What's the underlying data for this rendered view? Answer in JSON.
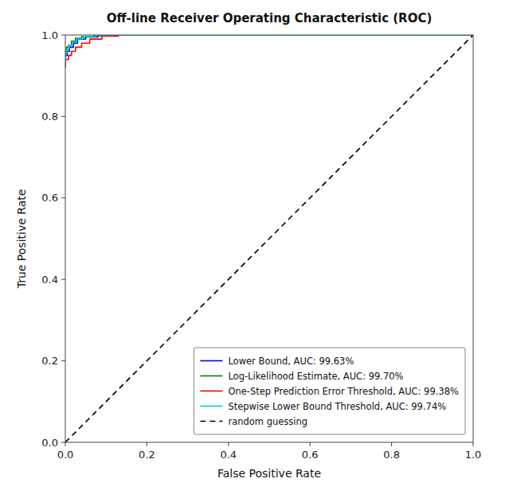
{
  "chart_data": {
    "type": "line",
    "title": "Off-line Receiver Operating Characteristic (ROC)",
    "xlabel": "False Positive Rate",
    "ylabel": "True Positive Rate",
    "xlim": [
      0.0,
      1.0
    ],
    "ylim": [
      0.0,
      1.0
    ],
    "xticks": [
      {
        "value": 0,
        "label": "0.0"
      },
      0.2,
      0.4,
      0.6,
      0.8,
      {
        "value": 1,
        "label": "1.0"
      }
    ],
    "yticks": [
      {
        "value": 0,
        "label": "0.0"
      },
      0.2,
      0.4,
      0.6,
      0.8,
      {
        "value": 1,
        "label": "1.0"
      }
    ],
    "grid": false,
    "legend": "lower right",
    "series": [
      {
        "name": "Lower Bound, AUC: 99.63%",
        "color": "#0000FF",
        "x": [
          0.0,
          0.0,
          0.005,
          0.005,
          0.01,
          0.01,
          0.02,
          0.02,
          0.03,
          0.03,
          0.05,
          0.05,
          0.08,
          0.08,
          0.12,
          0.12,
          1.0
        ],
        "values": [
          0.92,
          0.95,
          0.95,
          0.96,
          0.96,
          0.97,
          0.97,
          0.98,
          0.98,
          0.99,
          0.99,
          0.995,
          0.995,
          0.998,
          0.998,
          1.0,
          1.0
        ]
      },
      {
        "name": "Log-Likelihood Estimate, AUC: 99.70%",
        "color": "#008000",
        "x": [
          0.0,
          0.0,
          0.003,
          0.003,
          0.008,
          0.008,
          0.015,
          0.015,
          0.025,
          0.025,
          0.04,
          0.04,
          0.07,
          0.07,
          0.11,
          0.11,
          1.0
        ],
        "values": [
          0.94,
          0.96,
          0.96,
          0.97,
          0.97,
          0.975,
          0.975,
          0.985,
          0.985,
          0.992,
          0.992,
          0.996,
          0.996,
          0.999,
          0.999,
          1.0,
          1.0
        ]
      },
      {
        "name": "One-Step Prediction Error Threshold, AUC: 99.38%",
        "color": "#FF0000",
        "x": [
          0.0,
          0.0,
          0.008,
          0.008,
          0.015,
          0.015,
          0.025,
          0.025,
          0.04,
          0.04,
          0.06,
          0.06,
          0.09,
          0.09,
          0.13,
          0.13,
          1.0
        ],
        "values": [
          0.93,
          0.94,
          0.94,
          0.95,
          0.95,
          0.96,
          0.96,
          0.97,
          0.97,
          0.98,
          0.98,
          0.99,
          0.99,
          0.997,
          0.997,
          1.0,
          1.0
        ]
      },
      {
        "name": "Stepwise Lower Bound Threshold, AUC: 99.74%",
        "color": "#00CCCC",
        "x": [
          0.0,
          0.0,
          0.004,
          0.004,
          0.009,
          0.009,
          0.018,
          0.018,
          0.028,
          0.028,
          0.045,
          0.045,
          0.075,
          0.075,
          0.115,
          0.115,
          1.0
        ],
        "values": [
          0.935,
          0.955,
          0.955,
          0.965,
          0.965,
          0.975,
          0.975,
          0.983,
          0.983,
          0.991,
          0.991,
          0.996,
          0.996,
          0.999,
          0.999,
          1.0,
          1.0
        ]
      },
      {
        "name": "random guessing",
        "color": "#000000",
        "line_style": "dashed",
        "x": [
          0,
          1
        ],
        "values": [
          0,
          1
        ]
      }
    ]
  }
}
